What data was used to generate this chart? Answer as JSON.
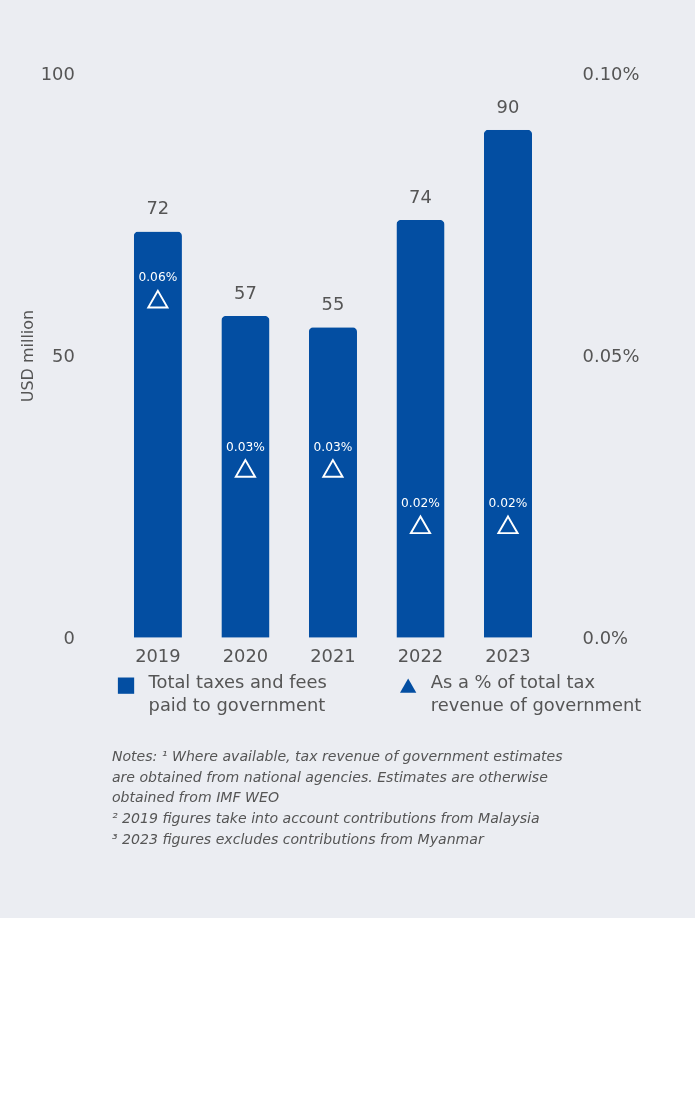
{
  "chart_data": {
    "type": "bar",
    "categories": [
      "2019",
      "2020",
      "2021",
      "2022",
      "2023"
    ],
    "ylabel": "USD million",
    "ylim": [
      0,
      100
    ],
    "yticks": [
      0,
      50,
      100
    ],
    "y2lim": [
      0,
      0.1
    ],
    "y2ticks": [
      {
        "value": 0,
        "label": "0.0%"
      },
      {
        "value": 0.05,
        "label": "0.05%"
      },
      {
        "value": 0.1,
        "label": "0.10%"
      }
    ],
    "series": [
      {
        "name": "Total taxes and fees paid to government",
        "color": "#034ea2",
        "values": [
          72,
          57,
          55,
          74,
          90
        ],
        "data_labels": true
      },
      {
        "name": "As a % of total tax revenue of government",
        "color": "#034ea2",
        "type": "scatter",
        "marker": "triangle",
        "axis": "y2",
        "values": [
          0.06,
          0.03,
          0.03,
          0.02,
          0.02
        ],
        "value_labels": [
          "0.06%",
          "0.03%",
          "0.03%",
          "0.02%",
          "0.02%"
        ]
      }
    ],
    "grid": false,
    "legend": "bottom",
    "annotations": [
      "Notes: ¹ Where available, tax revenue of government estimates are obtained from national agencies. Estimates are otherwise obtained from IMF WEO",
      "² 2019 figures take into account contributions from Malaysia",
      "³ 2023 figures excludes contributions from Myanmar"
    ]
  }
}
